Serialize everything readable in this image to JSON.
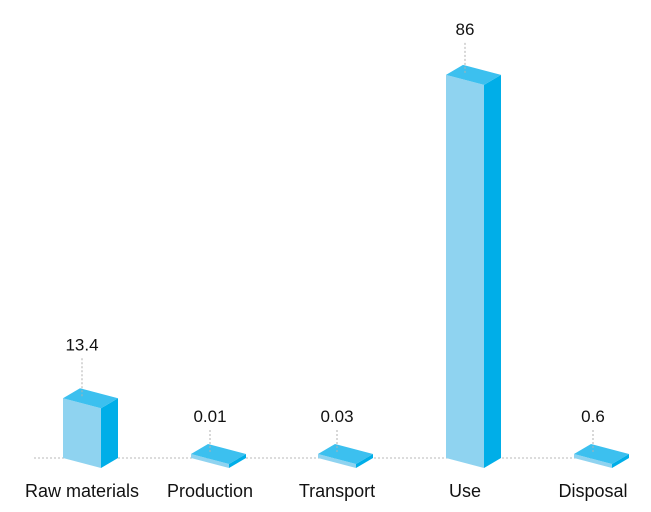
{
  "chart_data": {
    "type": "bar",
    "categories": [
      "Raw materials",
      "Production",
      "Transport",
      "Use",
      "Disposal"
    ],
    "values": [
      13.4,
      0.01,
      0.03,
      86,
      0.6
    ],
    "value_labels": [
      "13.4",
      "0.01",
      "0.03",
      "86",
      "0.6"
    ],
    "title": "",
    "xlabel": "",
    "ylabel": "",
    "ylim": [
      0,
      90
    ],
    "grid": false,
    "legend": "none",
    "style": "3d-bars",
    "colors": {
      "bar_front": "#8fd3f0",
      "bar_side": "#00aee8",
      "bar_top": "#3cc0ef",
      "baseline": "#b8b8b8",
      "leader": "#b0b0b0",
      "text": "#111111"
    }
  }
}
